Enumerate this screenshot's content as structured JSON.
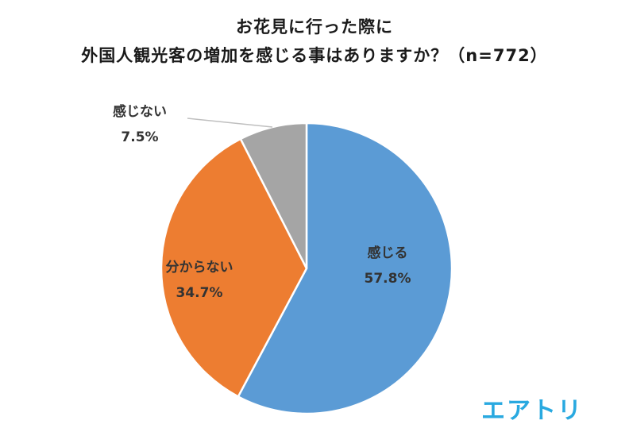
{
  "chart_data": {
    "type": "pie",
    "title_lines": [
      "お花見に行った際に",
      "外国人観光客の増加を感じる事はありますか？（n=772）"
    ],
    "slices": [
      {
        "label": "感じる",
        "value": 57.8,
        "value_label": "57.8%",
        "color": "#5b9bd5"
      },
      {
        "label": "分からない",
        "value": 34.7,
        "value_label": "34.7%",
        "color": "#ed7d31"
      },
      {
        "label": "感じない",
        "value": 7.5,
        "value_label": "7.5%",
        "color": "#a5a5a5"
      }
    ],
    "start": "12 o'clock",
    "direction": "clockwise"
  },
  "logo": {
    "text": "エアトリ",
    "color": "#29a9e0"
  }
}
